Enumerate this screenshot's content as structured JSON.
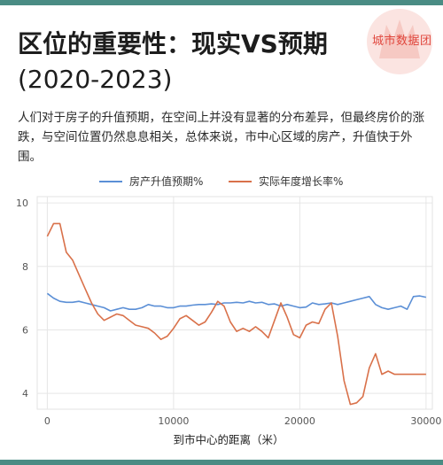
{
  "header": {
    "title_line1": "区位的重要性：现实VS预期",
    "title_line2": "(2020-2023)",
    "watermark": "城市数据团"
  },
  "description": "人们对于房子的升值预期，在空间上并没有显著的分布差异，但最终房价的涨跌，与空间位置仍然息息相关，总体来说，市中心区域的房产，升值快于外围。",
  "colors": {
    "accent_bar": "#4a8c84",
    "series_expect": "#5b8fd6",
    "series_actual": "#d9714a",
    "watermark": "#e0463c"
  },
  "chart_data": {
    "type": "line",
    "xlabel": "到市中心的距离（米）",
    "ylabel": "",
    "xlim": [
      -800,
      30500
    ],
    "ylim": [
      3.5,
      10.2
    ],
    "xticks": [
      0,
      10000,
      20000,
      30000
    ],
    "yticks": [
      4,
      6,
      8,
      10
    ],
    "grid": true,
    "legend_position": "top-center",
    "series": [
      {
        "name": "房产升值预期%",
        "color": "#5b8fd6",
        "x": [
          0,
          500,
          1000,
          1500,
          2000,
          2500,
          3000,
          3500,
          4000,
          4500,
          5000,
          5500,
          6000,
          6500,
          7000,
          7500,
          8000,
          8500,
          9000,
          9500,
          10000,
          10500,
          11000,
          11500,
          12000,
          12500,
          13000,
          13500,
          14000,
          14500,
          15000,
          15500,
          16000,
          16500,
          17000,
          17500,
          18000,
          18500,
          19000,
          19500,
          20000,
          20500,
          21000,
          21500,
          22000,
          22500,
          23000,
          23500,
          24000,
          24500,
          25000,
          25500,
          26000,
          26500,
          27000,
          27500,
          28000,
          28500,
          29000,
          29500,
          30000
        ],
        "values": [
          7.15,
          7.0,
          6.9,
          6.87,
          6.87,
          6.9,
          6.85,
          6.8,
          6.75,
          6.7,
          6.6,
          6.65,
          6.7,
          6.65,
          6.65,
          6.7,
          6.8,
          6.75,
          6.75,
          6.7,
          6.7,
          6.75,
          6.75,
          6.78,
          6.8,
          6.8,
          6.82,
          6.8,
          6.85,
          6.85,
          6.87,
          6.85,
          6.9,
          6.85,
          6.87,
          6.8,
          6.82,
          6.75,
          6.8,
          6.75,
          6.7,
          6.72,
          6.85,
          6.8,
          6.82,
          6.85,
          6.8,
          6.85,
          6.9,
          6.95,
          7.0,
          7.05,
          6.8,
          6.7,
          6.65,
          6.7,
          6.75,
          6.65,
          7.05,
          7.07,
          7.03
        ]
      },
      {
        "name": "实际年度增长率%",
        "color": "#d9714a",
        "x": [
          0,
          500,
          1000,
          1500,
          2000,
          2500,
          3000,
          3500,
          4000,
          4500,
          5000,
          5500,
          6000,
          6500,
          7000,
          7500,
          8000,
          8500,
          9000,
          9500,
          10000,
          10500,
          11000,
          11500,
          12000,
          12500,
          13000,
          13500,
          14000,
          14500,
          15000,
          15500,
          16000,
          16500,
          17000,
          17500,
          18000,
          18500,
          19000,
          19500,
          20000,
          20500,
          21000,
          21500,
          22000,
          22500,
          23000,
          23500,
          24000,
          24500,
          25000,
          25500,
          26000,
          26500,
          27000,
          27500,
          28000,
          28500,
          29000,
          29500,
          30000
        ],
        "values": [
          8.95,
          9.35,
          9.35,
          8.45,
          8.2,
          7.75,
          7.3,
          6.85,
          6.5,
          6.3,
          6.4,
          6.5,
          6.45,
          6.3,
          6.15,
          6.1,
          6.05,
          5.9,
          5.7,
          5.8,
          6.05,
          6.35,
          6.45,
          6.3,
          6.15,
          6.25,
          6.55,
          6.9,
          6.75,
          6.25,
          5.95,
          6.05,
          5.95,
          6.1,
          5.95,
          5.75,
          6.3,
          6.85,
          6.4,
          5.85,
          5.75,
          6.15,
          6.25,
          6.2,
          6.65,
          6.85,
          5.8,
          4.4,
          3.65,
          3.7,
          3.9,
          4.8,
          5.25,
          4.6,
          4.7,
          4.6,
          4.6,
          4.6,
          4.6,
          4.6,
          4.6
        ]
      }
    ]
  }
}
